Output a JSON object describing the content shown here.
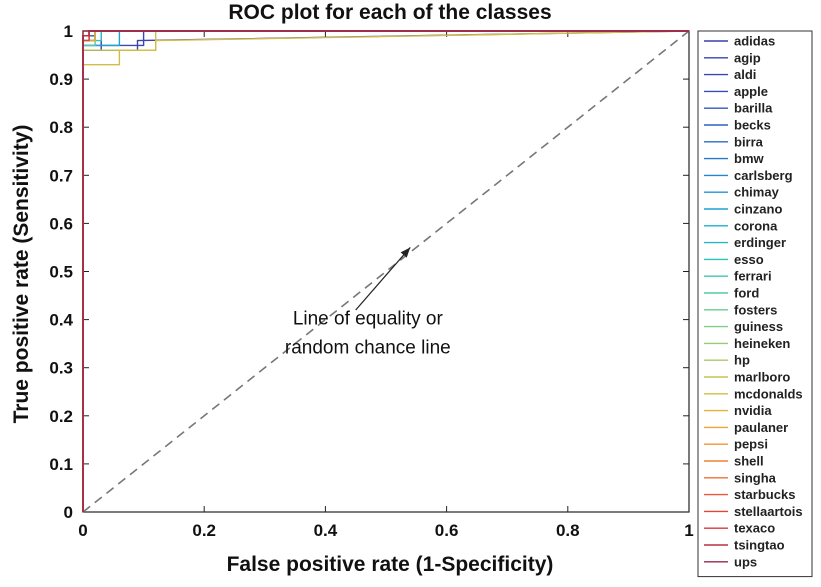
{
  "chart_data": {
    "type": "line",
    "title": "ROC plot for each of the classes",
    "xlabel": "False positive rate (1-Specificity)",
    "ylabel": "True positive rate (Sensitivity)",
    "xlim": [
      0,
      1
    ],
    "ylim": [
      0,
      1
    ],
    "x_ticks": [
      "0",
      "0.2",
      "0.4",
      "0.6",
      "0.8",
      "1"
    ],
    "y_ticks": [
      "0",
      "0.1",
      "0.2",
      "0.3",
      "0.4",
      "0.5",
      "0.6",
      "0.7",
      "0.8",
      "0.9",
      "1"
    ],
    "grid": false,
    "legend_position": "right-outside",
    "annotation": {
      "lines": [
        "Line of equality or",
        "random chance line"
      ],
      "arrow_from": [
        0.45,
        0.42
      ],
      "arrow_to": [
        0.54,
        0.55
      ]
    },
    "reference_line": {
      "x": [
        0,
        1
      ],
      "y": [
        0,
        1
      ],
      "style": "dashed",
      "color": "#777777"
    },
    "series": [
      {
        "name": "adidas",
        "color": "#3b3fa8",
        "x": [
          0,
          0,
          0.03,
          0.03,
          1
        ],
        "y": [
          0,
          0.96,
          0.96,
          1,
          1
        ]
      },
      {
        "name": "agip",
        "color": "#3a42ad",
        "x": [
          0,
          0,
          0.09,
          0.09,
          1
        ],
        "y": [
          0,
          0.96,
          0.96,
          0.98,
          1
        ]
      },
      {
        "name": "aldi",
        "color": "#3948b3",
        "x": [
          0,
          0,
          0.1,
          0.1,
          1
        ],
        "y": [
          0,
          0.97,
          0.97,
          1,
          1
        ]
      },
      {
        "name": "apple",
        "color": "#384fba",
        "x": [
          0,
          0,
          0.01,
          0.01,
          1
        ],
        "y": [
          0,
          0.98,
          0.98,
          1,
          1
        ]
      },
      {
        "name": "barilla",
        "color": "#3457be",
        "x": [
          0,
          0,
          0.02,
          0.02,
          1
        ],
        "y": [
          0,
          0.99,
          0.99,
          1,
          1
        ]
      },
      {
        "name": "becks",
        "color": "#2f60c2",
        "x": [
          0,
          0,
          0.01,
          0.01,
          1
        ],
        "y": [
          0,
          0.99,
          0.99,
          1,
          1
        ]
      },
      {
        "name": "birra",
        "color": "#2a6bc7",
        "x": [
          0,
          0,
          0.02,
          0.02,
          1
        ],
        "y": [
          0,
          0.98,
          0.98,
          1,
          1
        ]
      },
      {
        "name": "bmw",
        "color": "#2778cc",
        "x": [
          0,
          0,
          0.01,
          0.01,
          1
        ],
        "y": [
          0,
          0.99,
          0.99,
          1,
          1
        ]
      },
      {
        "name": "carlsberg",
        "color": "#2386cf",
        "x": [
          0,
          0,
          0.02,
          0.02,
          1
        ],
        "y": [
          0,
          0.98,
          0.98,
          1,
          1
        ]
      },
      {
        "name": "chimay",
        "color": "#1f96d0",
        "x": [
          0,
          0,
          0.01,
          0.01,
          1
        ],
        "y": [
          0,
          0.99,
          0.99,
          1,
          1
        ]
      },
      {
        "name": "cinzano",
        "color": "#1ca4cf",
        "x": [
          0,
          0,
          0.06,
          0.06,
          1
        ],
        "y": [
          0,
          0.97,
          0.97,
          1,
          1
        ]
      },
      {
        "name": "corona",
        "color": "#1db0cb",
        "x": [
          0,
          0,
          0.02,
          0.02,
          1
        ],
        "y": [
          0,
          0.98,
          0.98,
          1,
          1
        ]
      },
      {
        "name": "erdinger",
        "color": "#24bac4",
        "x": [
          0,
          0,
          0.01,
          0.01,
          1
        ],
        "y": [
          0,
          0.99,
          0.99,
          1,
          1
        ]
      },
      {
        "name": "esso",
        "color": "#2fc1bb",
        "x": [
          0,
          0,
          0.03,
          0.03,
          1
        ],
        "y": [
          0,
          0.98,
          0.98,
          1,
          1
        ]
      },
      {
        "name": "ferrari",
        "color": "#3fc7b0",
        "x": [
          0,
          0,
          0.01,
          0.01,
          1
        ],
        "y": [
          0,
          0.99,
          0.99,
          1,
          1
        ]
      },
      {
        "name": "ford",
        "color": "#52cba4",
        "x": [
          0,
          0,
          0.02,
          0.02,
          1
        ],
        "y": [
          0,
          0.97,
          0.97,
          1,
          1
        ]
      },
      {
        "name": "fosters",
        "color": "#68cd96",
        "x": [
          0,
          0,
          0.01,
          0.01,
          1
        ],
        "y": [
          0,
          0.99,
          0.99,
          1,
          1
        ]
      },
      {
        "name": "guiness",
        "color": "#80cd86",
        "x": [
          0,
          0,
          0.02,
          0.02,
          1
        ],
        "y": [
          0,
          0.98,
          0.98,
          1,
          1
        ]
      },
      {
        "name": "heineken",
        "color": "#98cb75",
        "x": [
          0,
          0,
          0.01,
          0.01,
          1
        ],
        "y": [
          0,
          0.99,
          0.99,
          1,
          1
        ]
      },
      {
        "name": "hp",
        "color": "#aec864",
        "x": [
          0,
          0,
          0.02,
          0.02,
          1
        ],
        "y": [
          0,
          0.98,
          0.98,
          1,
          1
        ]
      },
      {
        "name": "marlboro",
        "color": "#c3c354",
        "x": [
          0,
          0,
          0.12,
          0.12,
          1
        ],
        "y": [
          0,
          0.96,
          0.96,
          1,
          1
        ]
      },
      {
        "name": "mcdonalds",
        "color": "#d5bc46",
        "x": [
          0,
          0,
          0.06,
          0.06,
          0.12,
          0.12,
          1
        ],
        "y": [
          0,
          0.93,
          0.93,
          0.96,
          0.96,
          0.98,
          1
        ]
      },
      {
        "name": "nvidia",
        "color": "#e3b13c",
        "x": [
          0,
          0,
          0.01,
          0.01,
          1
        ],
        "y": [
          0,
          0.99,
          0.99,
          1,
          1
        ]
      },
      {
        "name": "paulaner",
        "color": "#eda436",
        "x": [
          0,
          0,
          0.02,
          0.02,
          1
        ],
        "y": [
          0,
          0.98,
          0.98,
          1,
          1
        ]
      },
      {
        "name": "pepsi",
        "color": "#f29534",
        "x": [
          0,
          0,
          0.01,
          0.01,
          1
        ],
        "y": [
          0,
          0.99,
          0.99,
          1,
          1
        ]
      },
      {
        "name": "shell",
        "color": "#f48234",
        "x": [
          0,
          0,
          0.01,
          0.01,
          1
        ],
        "y": [
          0,
          0.99,
          0.99,
          1,
          1
        ]
      },
      {
        "name": "singha",
        "color": "#f26d36",
        "x": [
          0,
          0,
          0.01,
          0.01,
          1
        ],
        "y": [
          0,
          0.99,
          0.99,
          1,
          1
        ]
      },
      {
        "name": "starbucks",
        "color": "#ec5838",
        "x": [
          0,
          0,
          0.01,
          0.01,
          1
        ],
        "y": [
          0,
          0.99,
          0.99,
          1,
          1
        ]
      },
      {
        "name": "stellaartois",
        "color": "#e2453a",
        "x": [
          0,
          0,
          0.01,
          0.01,
          1
        ],
        "y": [
          0,
          0.98,
          0.98,
          1,
          1
        ]
      },
      {
        "name": "texaco",
        "color": "#d4383d",
        "x": [
          0,
          0,
          0.01,
          0.01,
          1
        ],
        "y": [
          0,
          0.99,
          0.99,
          1,
          1
        ]
      },
      {
        "name": "tsingtao",
        "color": "#b83044",
        "x": [
          0,
          0,
          0.01,
          0.01,
          1
        ],
        "y": [
          0,
          0.99,
          0.99,
          1,
          1
        ]
      },
      {
        "name": "ups",
        "color": "#96284b",
        "x": [
          0,
          0,
          1
        ],
        "y": [
          0,
          1,
          1
        ]
      }
    ]
  }
}
